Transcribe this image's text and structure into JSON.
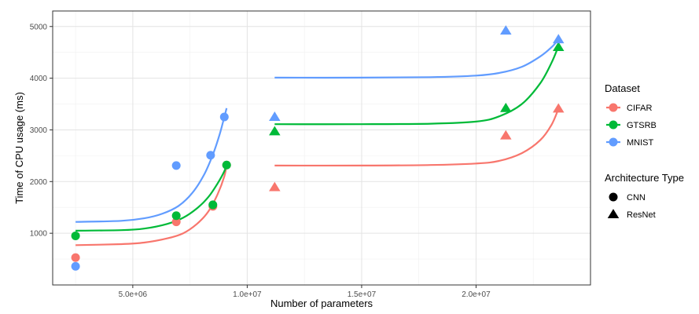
{
  "chart_data": {
    "type": "scatter",
    "xlabel": "Number of parameters",
    "ylabel": "Time of CPU usage (ms)",
    "xlim": [
      1500000,
      25000000
    ],
    "ylim": [
      0,
      5300
    ],
    "xticks": [
      5000000,
      10000000,
      15000000,
      20000000
    ],
    "xtick_labels": [
      "5.0e+06",
      "1.0e+07",
      "1.5e+07",
      "2.0e+07"
    ],
    "yticks": [
      1000,
      2000,
      3000,
      4000,
      5000
    ],
    "ytick_labels": [
      "1000",
      "2000",
      "3000",
      "4000",
      "5000"
    ],
    "grid": true,
    "legend_position": "right",
    "colors": {
      "CIFAR": "#F8766D",
      "GTSRB": "#00BA38",
      "MNIST": "#619CFF"
    },
    "legends": {
      "dataset": {
        "title": "Dataset",
        "items": [
          "CIFAR",
          "GTSRB",
          "MNIST"
        ]
      },
      "architecture": {
        "title": "Architecture Type",
        "items": [
          "CNN",
          "ResNet"
        ]
      }
    },
    "series": [
      {
        "name": "CIFAR",
        "cnn_points": [
          [
            2500000,
            530
          ],
          [
            6900000,
            1220
          ],
          [
            8500000,
            1520
          ],
          [
            9100000,
            2320
          ]
        ],
        "resnet_points": [
          [
            11200000,
            1890
          ],
          [
            21300000,
            2890
          ],
          [
            23600000,
            3410
          ]
        ],
        "cnn_curve": [
          [
            2500000,
            770
          ],
          [
            4500000,
            790
          ],
          [
            5500000,
            820
          ],
          [
            6500000,
            900
          ],
          [
            7200000,
            1000
          ],
          [
            7800000,
            1180
          ],
          [
            8300000,
            1420
          ],
          [
            8700000,
            1750
          ],
          [
            9000000,
            2100
          ],
          [
            9100000,
            2320
          ]
        ],
        "resnet_curve": [
          [
            11200000,
            2310
          ],
          [
            15000000,
            2310
          ],
          [
            18000000,
            2320
          ],
          [
            20000000,
            2350
          ],
          [
            21000000,
            2400
          ],
          [
            22000000,
            2550
          ],
          [
            22800000,
            2800
          ],
          [
            23300000,
            3100
          ],
          [
            23600000,
            3410
          ]
        ]
      },
      {
        "name": "GTSRB",
        "cnn_points": [
          [
            2500000,
            950
          ],
          [
            6900000,
            1340
          ],
          [
            8500000,
            1550
          ],
          [
            9100000,
            2320
          ]
        ],
        "resnet_points": [
          [
            11200000,
            2970
          ],
          [
            21300000,
            3420
          ],
          [
            23600000,
            4600
          ]
        ],
        "cnn_curve": [
          [
            2500000,
            1050
          ],
          [
            4500000,
            1060
          ],
          [
            5500000,
            1090
          ],
          [
            6500000,
            1180
          ],
          [
            7200000,
            1300
          ],
          [
            7800000,
            1480
          ],
          [
            8300000,
            1700
          ],
          [
            8700000,
            1960
          ],
          [
            9000000,
            2200
          ],
          [
            9100000,
            2330
          ]
        ],
        "resnet_curve": [
          [
            11200000,
            3110
          ],
          [
            15000000,
            3110
          ],
          [
            18000000,
            3120
          ],
          [
            20000000,
            3160
          ],
          [
            21000000,
            3260
          ],
          [
            22000000,
            3500
          ],
          [
            22800000,
            3900
          ],
          [
            23300000,
            4300
          ],
          [
            23600000,
            4620
          ]
        ]
      },
      {
        "name": "MNIST",
        "cnn_points": [
          [
            2500000,
            360
          ],
          [
            6900000,
            2310
          ],
          [
            8400000,
            2510
          ],
          [
            9000000,
            3250
          ]
        ],
        "resnet_points": [
          [
            11200000,
            3250
          ],
          [
            21300000,
            4920
          ],
          [
            23600000,
            4750
          ]
        ],
        "cnn_curve": [
          [
            2500000,
            1220
          ],
          [
            4500000,
            1240
          ],
          [
            5500000,
            1290
          ],
          [
            6300000,
            1380
          ],
          [
            7000000,
            1530
          ],
          [
            7600000,
            1780
          ],
          [
            8100000,
            2120
          ],
          [
            8500000,
            2520
          ],
          [
            8800000,
            2920
          ],
          [
            9000000,
            3250
          ],
          [
            9100000,
            3420
          ]
        ],
        "resnet_curve": [
          [
            11200000,
            4010
          ],
          [
            15000000,
            4010
          ],
          [
            18000000,
            4020
          ],
          [
            20000000,
            4050
          ],
          [
            21000000,
            4100
          ],
          [
            22000000,
            4220
          ],
          [
            22800000,
            4420
          ],
          [
            23300000,
            4600
          ],
          [
            23600000,
            4750
          ]
        ]
      }
    ]
  }
}
